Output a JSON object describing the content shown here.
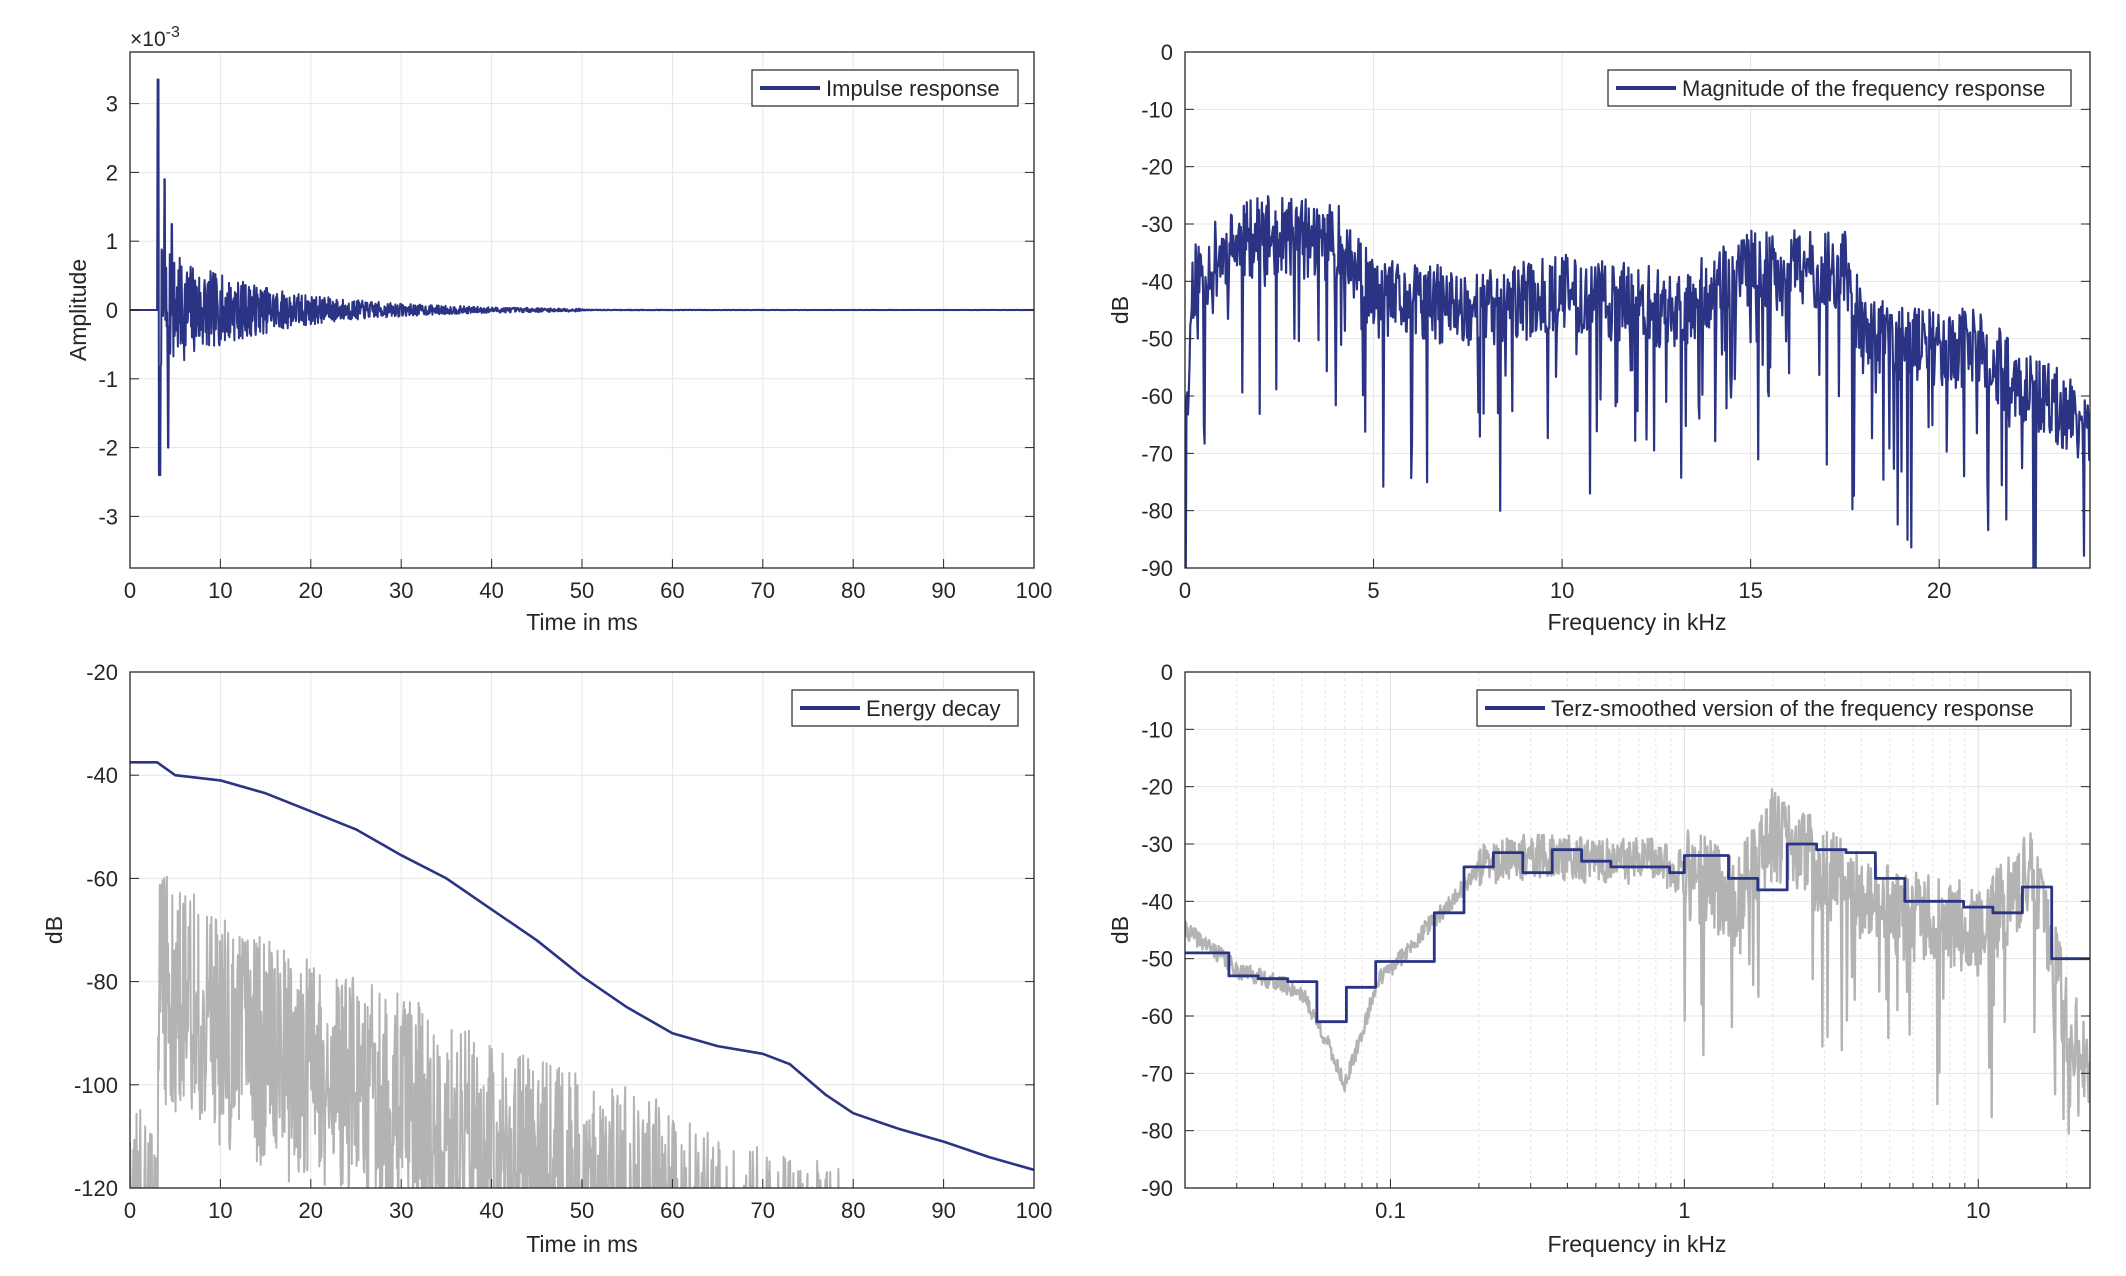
{
  "colors": {
    "navy": "#2b3484",
    "gray": "#b3b3b3",
    "axis": "#262626",
    "grid": "#e6e6e6"
  },
  "chart_data": [
    {
      "id": "impulse",
      "type": "line",
      "xlabel": "Time in ms",
      "ylabel": "Amplitude",
      "exponent_label": "×10",
      "exponent_sup": "-3",
      "xlim": [
        0,
        100
      ],
      "ylim": [
        -3.75,
        3.75
      ],
      "xticks": [
        0,
        10,
        20,
        30,
        40,
        50,
        60,
        70,
        80,
        90,
        100
      ],
      "yticks": [
        -3,
        -2,
        -1,
        0,
        1,
        2,
        3
      ],
      "grid": true,
      "legend_position": "top-right",
      "series": [
        {
          "name": "Impulse response",
          "color": "#2b3484",
          "envelope": {
            "start_ms": 3.0,
            "peak": 3.35,
            "first_min": -2.4,
            "decay_ms": 11.5,
            "early_level": 0.9,
            "end_of_visible_ms": 50
          }
        }
      ]
    },
    {
      "id": "magnitude",
      "type": "line",
      "xlabel": "Frequency in kHz",
      "ylabel": "dB",
      "xlim": [
        0,
        24
      ],
      "ylim": [
        -90,
        0
      ],
      "xticks": [
        0,
        5,
        10,
        15,
        20
      ],
      "yticks": [
        0,
        -10,
        -20,
        -30,
        -40,
        -50,
        -60,
        -70,
        -80,
        -90
      ],
      "grid": true,
      "legend_position": "top-right",
      "series": [
        {
          "name": "Magnitude of the frequency response",
          "color": "#2b3484",
          "trend": [
            [
              0,
              -72
            ],
            [
              0.2,
              -40
            ],
            [
              1,
              -35
            ],
            [
              2,
              -32
            ],
            [
              4,
              -33
            ],
            [
              5,
              -43
            ],
            [
              8,
              -45
            ],
            [
              10,
              -42
            ],
            [
              13,
              -45
            ],
            [
              15,
              -38
            ],
            [
              17.5,
              -38
            ],
            [
              18,
              -50
            ],
            [
              21,
              -52
            ],
            [
              22.5,
              -60
            ],
            [
              24,
              -65
            ]
          ]
        }
      ]
    },
    {
      "id": "energy",
      "type": "line",
      "xlabel": "Time in ms",
      "ylabel": "dB",
      "xlim": [
        0,
        100
      ],
      "ylim": [
        -120,
        -20
      ],
      "xticks": [
        0,
        10,
        20,
        30,
        40,
        50,
        60,
        70,
        80,
        90,
        100
      ],
      "yticks": [
        -20,
        -40,
        -60,
        -80,
        -100,
        -120
      ],
      "grid": true,
      "legend_position": "top-right",
      "series": [
        {
          "name": "Energy decay",
          "color": "#2b3484",
          "points": [
            [
              0,
              -37.5
            ],
            [
              3,
              -37.5
            ],
            [
              5,
              -40
            ],
            [
              10,
              -41
            ],
            [
              15,
              -43.5
            ],
            [
              20,
              -47
            ],
            [
              25,
              -50.5
            ],
            [
              30,
              -55.5
            ],
            [
              35,
              -60
            ],
            [
              40,
              -66
            ],
            [
              45,
              -72
            ],
            [
              50,
              -79
            ],
            [
              55,
              -85
            ],
            [
              60,
              -90
            ],
            [
              65,
              -92.5
            ],
            [
              70,
              -94
            ],
            [
              73,
              -96
            ],
            [
              77,
              -102
            ],
            [
              80,
              -105.5
            ],
            [
              85,
              -108.5
            ],
            [
              90,
              -111
            ],
            [
              95,
              -114
            ],
            [
              100,
              -116.5
            ]
          ]
        },
        {
          "name": "",
          "color": "#b3b3b3",
          "envelope": [
            [
              0,
              -100
            ],
            [
              3,
              -108
            ],
            [
              3.3,
              -58
            ],
            [
              10,
              -67
            ],
            [
              20,
              -76
            ],
            [
              30,
              -82
            ],
            [
              40,
              -92
            ],
            [
              50,
              -98
            ],
            [
              60,
              -103
            ],
            [
              66,
              -110
            ],
            [
              70,
              -112
            ],
            [
              79,
              -116
            ]
          ]
        }
      ]
    },
    {
      "id": "terz",
      "type": "line",
      "xlabel": "Frequency in kHz",
      "ylabel": "dB",
      "xscale": "log",
      "xlim": [
        0.02,
        24
      ],
      "ylim": [
        -90,
        0
      ],
      "xticks": [
        0.1,
        1,
        10
      ],
      "xtick_labels": [
        "0.1",
        "1",
        "10"
      ],
      "yticks": [
        0,
        -10,
        -20,
        -30,
        -40,
        -50,
        -60,
        -70,
        -80,
        -90
      ],
      "grid": true,
      "legend_position": "top-right",
      "series": [
        {
          "name": "Terz-smoothed version of the frequency response",
          "color": "#2b3484",
          "steps": [
            [
              0.02,
              -49
            ],
            [
              0.0282,
              -53
            ],
            [
              0.0355,
              -53.5
            ],
            [
              0.0447,
              -54
            ],
            [
              0.0562,
              -61
            ],
            [
              0.0708,
              -55
            ],
            [
              0.0891,
              -50.5
            ],
            [
              0.112,
              -50.5
            ],
            [
              0.141,
              -42
            ],
            [
              0.178,
              -34
            ],
            [
              0.224,
              -31.5
            ],
            [
              0.282,
              -35
            ],
            [
              0.355,
              -31
            ],
            [
              0.447,
              -33
            ],
            [
              0.562,
              -34
            ],
            [
              0.708,
              -34
            ],
            [
              0.891,
              -35
            ],
            [
              1.0,
              -32
            ],
            [
              1.122,
              -32
            ],
            [
              1.413,
              -36
            ],
            [
              1.778,
              -38
            ],
            [
              2.239,
              -30
            ],
            [
              2.818,
              -31
            ],
            [
              3.548,
              -31.5
            ],
            [
              4.467,
              -36
            ],
            [
              5.623,
              -40
            ],
            [
              7.079,
              -40
            ],
            [
              8.913,
              -41
            ],
            [
              11.22,
              -42
            ],
            [
              14.13,
              -37.5
            ],
            [
              17.78,
              -50
            ],
            [
              24,
              -50
            ]
          ]
        },
        {
          "name": "",
          "color": "#b3b3b3",
          "trend": [
            [
              0.02,
              -45
            ],
            [
              0.03,
              -52
            ],
            [
              0.05,
              -56
            ],
            [
              0.07,
              -72
            ],
            [
              0.09,
              -54
            ],
            [
              0.13,
              -45
            ],
            [
              0.2,
              -34
            ],
            [
              0.3,
              -32
            ],
            [
              0.5,
              -33
            ],
            [
              0.8,
              -33
            ],
            [
              1.5,
              -40
            ],
            [
              2.0,
              -28
            ],
            [
              3.0,
              -35
            ],
            [
              5.0,
              -42
            ],
            [
              10,
              -45
            ],
            [
              15,
              -35
            ],
            [
              20,
              -60
            ],
            [
              24,
              -72
            ]
          ]
        }
      ]
    }
  ]
}
